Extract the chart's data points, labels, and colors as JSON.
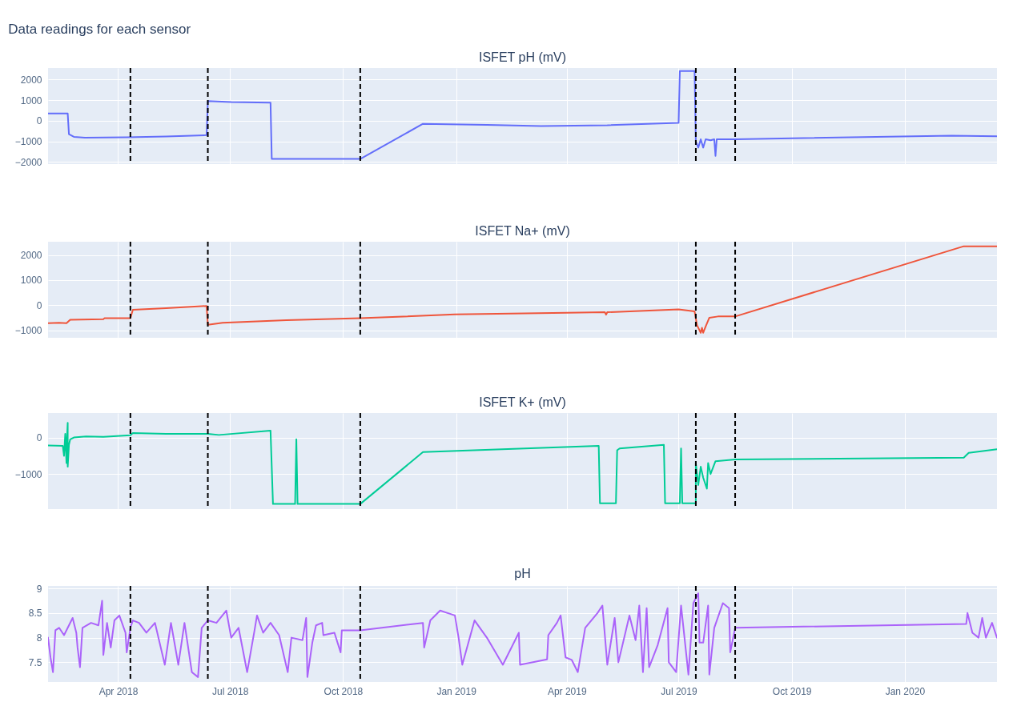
{
  "chart_data": [
    {
      "type": "line",
      "title": "Data readings for each sensor",
      "subtitle": "ISFET pH (mV)",
      "tick_labels": "y",
      "grid": true,
      "xticks": [
        {
          "value": "2018-04-01",
          "label": null
        },
        {
          "value": "2018-07-01",
          "label": null
        },
        {
          "value": "2018-10-01",
          "label": null
        },
        {
          "value": "2019-01-01",
          "label": null
        },
        {
          "value": "2019-04-01",
          "label": null
        },
        {
          "value": "2019-07-01",
          "label": null
        },
        {
          "value": "2019-10-01",
          "label": null
        },
        {
          "value": "2020-01-01",
          "label": null
        }
      ],
      "x": [
        "2018-02-03",
        "2018-02-19",
        "2018-02-20",
        "2018-02-24",
        "2018-03-05",
        "2018-04-08",
        "2018-05-10",
        "2018-06-12",
        "2018-06-13",
        "2018-07-02",
        "2018-08-03",
        "2018-08-04",
        "2018-10-15",
        "2018-12-05",
        "2019-01-26",
        "2019-03-11",
        "2019-05-04",
        "2019-07-01",
        "2019-07-02",
        "2019-07-14",
        "2019-07-15",
        "2019-07-17",
        "2019-07-19",
        "2019-07-21",
        "2019-07-23",
        "2019-07-27",
        "2019-07-30",
        "2019-07-31",
        "2019-08-01",
        "2019-08-16",
        "2020-02-08",
        "2020-03-16"
      ],
      "series": [
        {
          "color": "#636efa",
          "values": [
            350,
            350,
            -650,
            -780,
            -820,
            -800,
            -760,
            -700,
            950,
            900,
            870,
            -1850,
            -1850,
            -150,
            -200,
            -260,
            -220,
            -100,
            2400,
            2400,
            -1000,
            -1300,
            -900,
            -1300,
            -900,
            -950,
            -900,
            -1700,
            -900,
            -900,
            -720,
            -750
          ]
        }
      ],
      "xlim": [
        "2018-02-03",
        "2020-03-16"
      ],
      "ylim": [
        -2100,
        2550
      ],
      "yticks": [
        -2000,
        -1000,
        0,
        1000,
        2000
      ],
      "ref_lines": [
        {
          "axis": "x",
          "value": "2018-04-11",
          "color": "#000000",
          "line_style": "dashed"
        },
        {
          "axis": "x",
          "value": "2018-06-13",
          "color": "#000000",
          "line_style": "dashed"
        },
        {
          "axis": "x",
          "value": "2018-10-15",
          "color": "#000000",
          "line_style": "dashed"
        },
        {
          "axis": "x",
          "value": "2019-07-15",
          "color": "#000000",
          "line_style": "dashed"
        },
        {
          "axis": "x",
          "value": "2019-08-16",
          "color": "#000000",
          "line_style": "dashed"
        }
      ]
    },
    {
      "type": "line",
      "title": "ISFET Na+ (mV)",
      "tick_labels": "y",
      "grid": true,
      "xticks": [
        {
          "value": "2018-04-01",
          "label": null
        },
        {
          "value": "2018-07-01",
          "label": null
        },
        {
          "value": "2018-10-01",
          "label": null
        },
        {
          "value": "2019-01-01",
          "label": null
        },
        {
          "value": "2019-04-01",
          "label": null
        },
        {
          "value": "2019-07-01",
          "label": null
        },
        {
          "value": "2019-10-01",
          "label": null
        },
        {
          "value": "2020-01-01",
          "label": null
        }
      ],
      "x": [
        "2018-02-03",
        "2018-02-12",
        "2018-02-18",
        "2018-02-21",
        "2018-03-20",
        "2018-03-21",
        "2018-04-11",
        "2018-04-13",
        "2018-05-10",
        "2018-06-12",
        "2018-06-13",
        "2018-06-25",
        "2018-08-16",
        "2018-10-15",
        "2018-12-31",
        "2019-04-01",
        "2019-05-02",
        "2019-05-03",
        "2019-05-04",
        "2019-07-01",
        "2019-07-14",
        "2019-07-16",
        "2019-07-19",
        "2019-07-20",
        "2019-07-21",
        "2019-07-23",
        "2019-07-26",
        "2019-08-02",
        "2019-08-16",
        "2020-02-18",
        "2020-03-16"
      ],
      "series": [
        {
          "color": "#ef553b",
          "values": [
            -720,
            -700,
            -720,
            -580,
            -560,
            -520,
            -520,
            -180,
            -120,
            -30,
            -780,
            -700,
            -600,
            -520,
            -370,
            -300,
            -280,
            -380,
            -280,
            -170,
            -250,
            -800,
            -1100,
            -900,
            -1100,
            -850,
            -500,
            -450,
            -450,
            2350,
            2350
          ]
        }
      ],
      "xlim": [
        "2018-02-03",
        "2020-03-16"
      ],
      "ylim": [
        -1300,
        2530
      ],
      "yticks": [
        -1000,
        0,
        1000,
        2000
      ],
      "ref_lines": [
        {
          "axis": "x",
          "value": "2018-04-11",
          "color": "#000000",
          "line_style": "dashed"
        },
        {
          "axis": "x",
          "value": "2018-06-13",
          "color": "#000000",
          "line_style": "dashed"
        },
        {
          "axis": "x",
          "value": "2018-10-15",
          "color": "#000000",
          "line_style": "dashed"
        },
        {
          "axis": "x",
          "value": "2019-07-15",
          "color": "#000000",
          "line_style": "dashed"
        },
        {
          "axis": "x",
          "value": "2019-08-16",
          "color": "#000000",
          "line_style": "dashed"
        }
      ]
    },
    {
      "type": "line",
      "title": "ISFET K+ (mV)",
      "tick_labels": "y",
      "grid": true,
      "xticks": [
        {
          "value": "2018-04-01",
          "label": null
        },
        {
          "value": "2018-07-01",
          "label": null
        },
        {
          "value": "2018-10-01",
          "label": null
        },
        {
          "value": "2019-01-01",
          "label": null
        },
        {
          "value": "2019-04-01",
          "label": null
        },
        {
          "value": "2019-07-01",
          "label": null
        },
        {
          "value": "2019-10-01",
          "label": null
        },
        {
          "value": "2020-01-01",
          "label": null
        }
      ],
      "x": [
        "2018-02-03",
        "2018-02-15",
        "2018-02-16",
        "2018-02-17",
        "2018-02-18",
        "2018-02-18",
        "2018-02-19",
        "2018-02-19",
        "2018-02-20",
        "2018-02-21",
        "2018-02-24",
        "2018-03-06",
        "2018-03-20",
        "2018-04-11",
        "2018-04-13",
        "2018-05-10",
        "2018-06-13",
        "2018-06-22",
        "2018-08-03",
        "2018-08-05",
        "2018-08-23",
        "2018-08-24",
        "2018-08-25",
        "2018-10-15",
        "2018-12-05",
        "2019-04-27",
        "2019-04-28",
        "2019-05-11",
        "2019-05-12",
        "2019-05-14",
        "2019-06-19",
        "2019-06-20",
        "2019-07-02",
        "2019-07-03",
        "2019-07-04",
        "2019-07-15",
        "2019-07-15",
        "2019-07-17",
        "2019-07-19",
        "2019-07-21",
        "2019-07-24",
        "2019-07-25",
        "2019-07-27",
        "2019-07-31",
        "2019-08-16",
        "2020-02-18",
        "2020-02-22",
        "2020-03-16"
      ],
      "series": [
        {
          "color": "#00cc96",
          "values": [
            -220,
            -230,
            -500,
            100,
            -700,
            -300,
            400,
            -800,
            -200,
            -50,
            0,
            30,
            20,
            60,
            120,
            100,
            100,
            70,
            190,
            -1820,
            -1820,
            -50,
            -1820,
            -1820,
            -400,
            -230,
            -1800,
            -1800,
            -350,
            -300,
            -200,
            -1800,
            -1800,
            -300,
            -1800,
            -1800,
            -700,
            -1300,
            -800,
            -1100,
            -1400,
            -700,
            -1000,
            -650,
            -600,
            -550,
            -420,
            -320
          ]
        }
      ],
      "xlim": [
        "2018-02-03",
        "2020-03-16"
      ],
      "ylim": [
        -1960,
        670
      ],
      "yticks": [
        -1000,
        0
      ],
      "ref_lines": [
        {
          "axis": "x",
          "value": "2018-04-11",
          "color": "#000000",
          "line_style": "dashed"
        },
        {
          "axis": "x",
          "value": "2018-06-13",
          "color": "#000000",
          "line_style": "dashed"
        },
        {
          "axis": "x",
          "value": "2018-10-15",
          "color": "#000000",
          "line_style": "dashed"
        },
        {
          "axis": "x",
          "value": "2019-07-15",
          "color": "#000000",
          "line_style": "dashed"
        },
        {
          "axis": "x",
          "value": "2019-08-16",
          "color": "#000000",
          "line_style": "dashed"
        }
      ]
    },
    {
      "type": "line",
      "title": "pH",
      "grid": true,
      "x": [
        "2018-02-03",
        "2018-02-05",
        "2018-02-07",
        "2018-02-09",
        "2018-02-12",
        "2018-02-16",
        "2018-02-20",
        "2018-02-23",
        "2018-02-26",
        "2018-02-27",
        "2018-03-01",
        "2018-03-03",
        "2018-03-10",
        "2018-03-16",
        "2018-03-19",
        "2018-03-20",
        "2018-03-23",
        "2018-03-26",
        "2018-03-29",
        "2018-04-02",
        "2018-04-07",
        "2018-04-08",
        "2018-04-11",
        "2018-04-13",
        "2018-04-18",
        "2018-04-24",
        "2018-05-01",
        "2018-05-09",
        "2018-05-14",
        "2018-05-20",
        "2018-05-25",
        "2018-05-31",
        "2018-06-05",
        "2018-06-08",
        "2018-06-13",
        "2018-06-20",
        "2018-06-28",
        "2018-07-02",
        "2018-07-08",
        "2018-07-15",
        "2018-07-21",
        "2018-07-23",
        "2018-07-28",
        "2018-08-03",
        "2018-08-10",
        "2018-08-17",
        "2018-08-20",
        "2018-08-29",
        "2018-09-01",
        "2018-09-02",
        "2018-09-06",
        "2018-09-09",
        "2018-09-14",
        "2018-09-15",
        "2018-09-24",
        "2018-09-29",
        "2018-09-30",
        "2018-10-15",
        "2018-12-05",
        "2018-12-06",
        "2018-12-11",
        "2018-12-19",
        "2018-12-31",
        "2019-01-03",
        "2019-01-06",
        "2019-01-16",
        "2019-01-26",
        "2019-02-08",
        "2019-02-21",
        "2019-02-22",
        "2019-03-16",
        "2019-03-17",
        "2019-03-24",
        "2019-03-27",
        "2019-03-31",
        "2019-04-05",
        "2019-04-10",
        "2019-04-16",
        "2019-04-26",
        "2019-04-30",
        "2019-05-04",
        "2019-05-10",
        "2019-05-13",
        "2019-05-22",
        "2019-05-27",
        "2019-05-30",
        "2019-06-02",
        "2019-06-05",
        "2019-06-07",
        "2019-06-14",
        "2019-06-22",
        "2019-06-23",
        "2019-06-29",
        "2019-07-03",
        "2019-07-09",
        "2019-07-13",
        "2019-07-17",
        "2019-07-18",
        "2019-07-21",
        "2019-07-25",
        "2019-07-26",
        "2019-07-30",
        "2019-08-06",
        "2019-08-11",
        "2019-08-12",
        "2019-08-16",
        "2020-02-20",
        "2020-02-21",
        "2020-02-25",
        "2020-03-01",
        "2020-03-04",
        "2020-03-07",
        "2020-03-12",
        "2020-03-16"
      ],
      "series": [
        {
          "color": "#ab63fa",
          "values": [
            8.0,
            7.6,
            7.3,
            8.15,
            8.2,
            8.05,
            8.25,
            8.4,
            8.1,
            7.8,
            7.4,
            8.2,
            8.3,
            8.25,
            8.75,
            7.65,
            8.3,
            7.8,
            8.35,
            8.45,
            8.1,
            7.7,
            8.2,
            8.35,
            8.3,
            8.1,
            8.3,
            7.45,
            8.3,
            7.45,
            8.3,
            7.3,
            7.2,
            8.2,
            8.35,
            8.3,
            8.55,
            8.0,
            8.2,
            7.3,
            8.15,
            8.45,
            8.1,
            8.3,
            8.05,
            7.3,
            8.0,
            7.95,
            8.4,
            7.2,
            7.9,
            8.25,
            8.3,
            8.05,
            8.1,
            7.7,
            8.15,
            8.15,
            8.3,
            7.8,
            8.35,
            8.55,
            8.45,
            8.0,
            7.45,
            8.35,
            8.0,
            7.45,
            8.1,
            7.45,
            7.56,
            8.05,
            8.3,
            8.45,
            7.6,
            7.55,
            7.3,
            8.2,
            8.5,
            8.65,
            7.45,
            8.4,
            7.5,
            8.45,
            7.95,
            8.65,
            7.3,
            8.6,
            7.4,
            7.85,
            8.6,
            7.5,
            7.3,
            8.65,
            7.25,
            8.7,
            8.9,
            7.9,
            7.9,
            8.65,
            7.25,
            8.2,
            8.7,
            8.6,
            7.7,
            8.2,
            8.28,
            8.5,
            8.1,
            8.0,
            8.4,
            8.0,
            8.3,
            8.0
          ]
        }
      ],
      "xlim": [
        "2018-02-03",
        "2020-03-16"
      ],
      "xticks": [
        {
          "value": "2018-04-01",
          "label": "Apr 2018"
        },
        {
          "value": "2018-07-01",
          "label": "Jul 2018"
        },
        {
          "value": "2018-10-01",
          "label": "Oct 2018"
        },
        {
          "value": "2019-01-01",
          "label": "Jan 2019"
        },
        {
          "value": "2019-04-01",
          "label": "Apr 2019"
        },
        {
          "value": "2019-07-01",
          "label": "Jul 2019"
        },
        {
          "value": "2019-10-01",
          "label": "Oct 2019"
        },
        {
          "value": "2020-01-01",
          "label": "Jan 2020"
        }
      ],
      "ylim": [
        7.1,
        9.05
      ],
      "yticks": [
        7.5,
        8,
        8.5,
        9
      ],
      "ref_lines": [
        {
          "axis": "x",
          "value": "2018-04-11",
          "color": "#000000",
          "line_style": "dashed"
        },
        {
          "axis": "x",
          "value": "2018-06-13",
          "color": "#000000",
          "line_style": "dashed"
        },
        {
          "axis": "x",
          "value": "2018-10-15",
          "color": "#000000",
          "line_style": "dashed"
        },
        {
          "axis": "x",
          "value": "2019-07-15",
          "color": "#000000",
          "line_style": "dashed"
        },
        {
          "axis": "x",
          "value": "2019-08-16",
          "color": "#000000",
          "line_style": "dashed"
        }
      ]
    }
  ]
}
